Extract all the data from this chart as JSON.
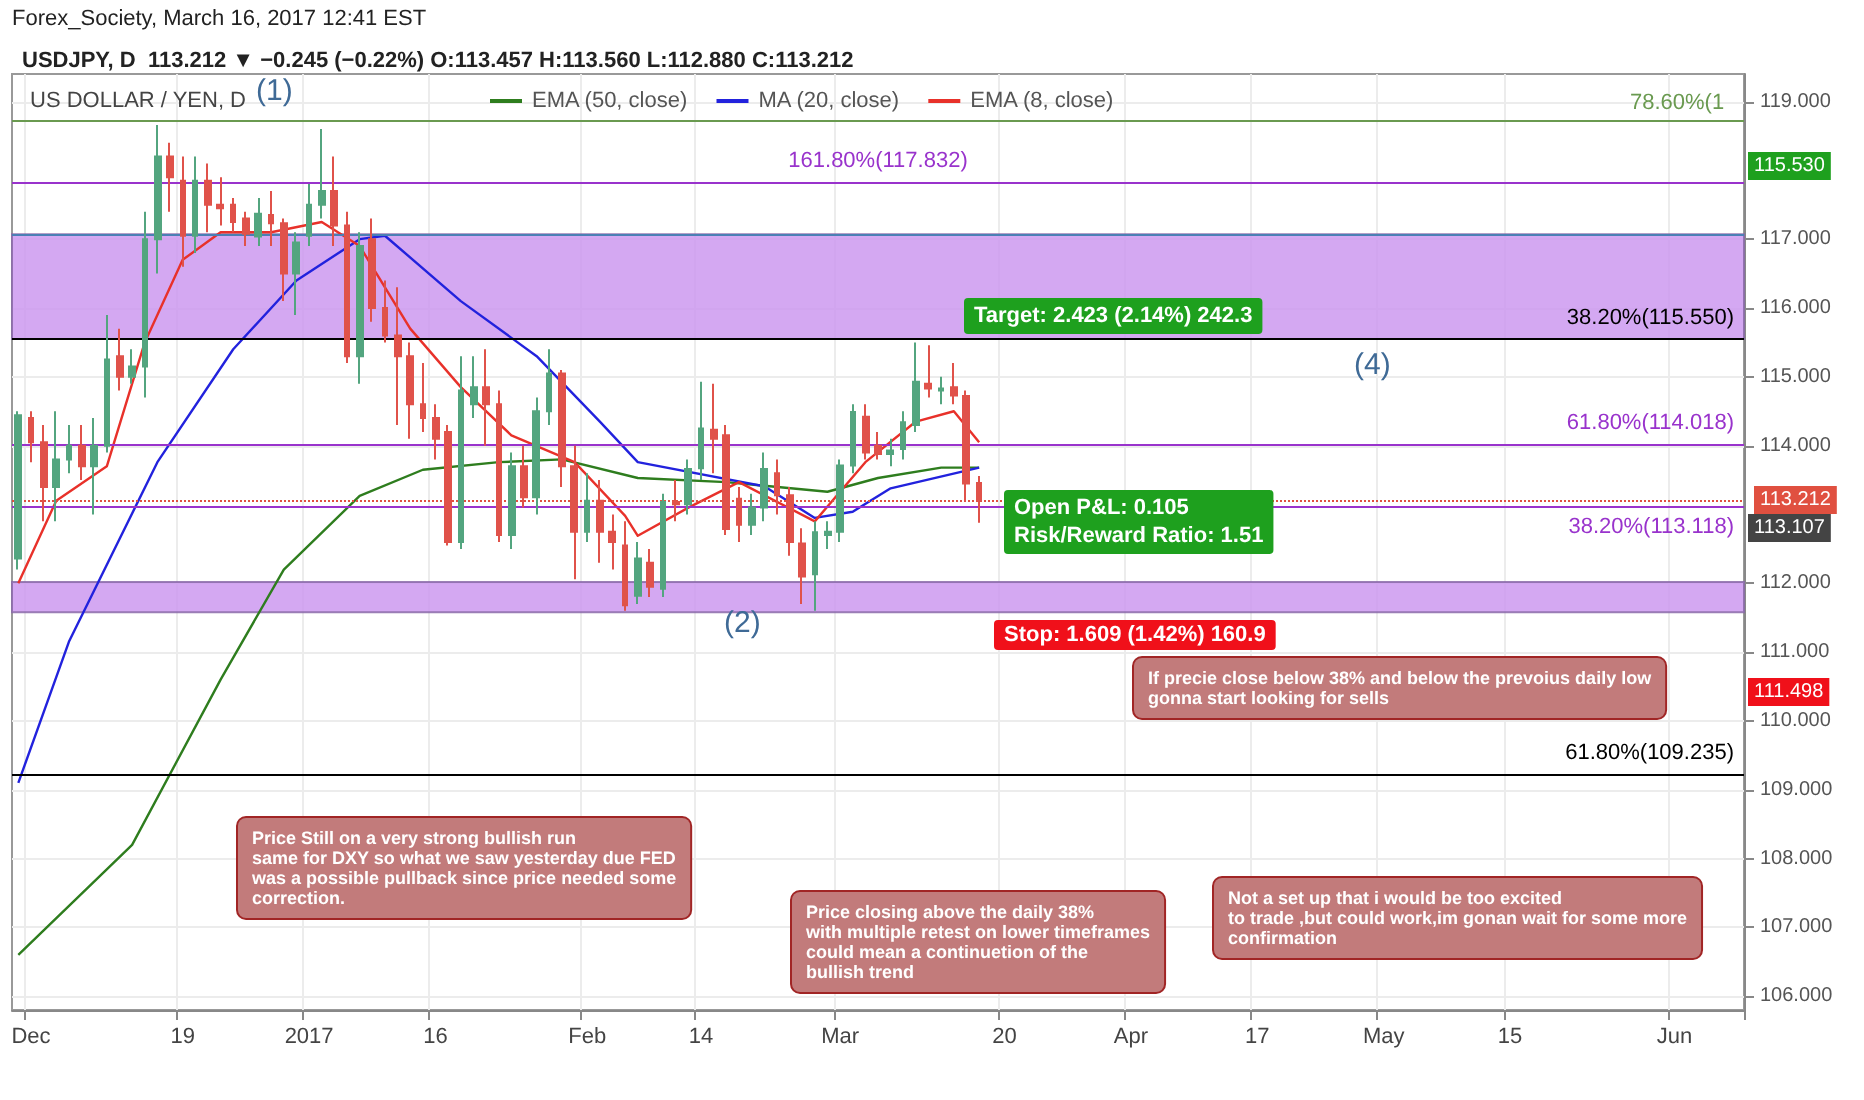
{
  "chart_data": {
    "type": "candlestick",
    "title": "US DOLLAR / YEN, D",
    "subtitle": "USDJPY, D  113.212 ▼ −0.245 (−0.22%) O:113.457 H:113.560 L:112.880 C:113.212",
    "categories": [
      null,
      "Dec",
      null,
      null,
      null,
      null,
      null,
      null,
      null,
      null,
      null,
      null,
      null,
      "19",
      null,
      null,
      null,
      null,
      null,
      null,
      null,
      null,
      null,
      "2017",
      null,
      null,
      null,
      null,
      null,
      null,
      null,
      null,
      null,
      "16",
      null,
      null,
      null,
      null,
      null,
      null,
      null,
      null,
      null,
      null,
      null,
      "Feb",
      null,
      null,
      null,
      null,
      null,
      null,
      null,
      null,
      "14",
      null,
      null,
      null,
      null,
      null,
      null,
      null,
      null,
      null,
      null,
      "Mar",
      null,
      null,
      null,
      null,
      null,
      null,
      null,
      null,
      null,
      null,
      null,
      null,
      "20",
      null,
      null,
      null,
      null,
      null,
      null,
      null,
      null,
      null,
      "Apr",
      null,
      null,
      null,
      null,
      null,
      null,
      null,
      null,
      null,
      "17",
      null,
      null,
      null,
      null,
      null,
      null,
      null,
      null,
      null,
      "May",
      null,
      null,
      null,
      null,
      null,
      null,
      null,
      null,
      null,
      "15",
      null,
      null,
      null,
      null,
      null,
      null,
      null,
      null,
      null,
      null,
      null,
      null,
      "Jun",
      null,
      null,
      null,
      null,
      null
    ],
    "ohlc": [
      [
        112.36,
        114.5,
        112.2,
        114.44
      ],
      [
        114.4,
        114.5,
        113.76,
        114.05
      ],
      [
        114.05,
        114.3,
        112.9,
        113.4
      ],
      [
        113.4,
        114.5,
        112.9,
        113.8
      ],
      [
        113.8,
        114.3,
        113.6,
        114.0
      ],
      [
        114.0,
        114.3,
        113.5,
        113.7
      ],
      [
        113.7,
        114.4,
        113.0,
        114.0
      ],
      [
        114.0,
        115.9,
        113.9,
        115.25
      ],
      [
        115.3,
        115.7,
        114.8,
        115.0
      ],
      [
        115.0,
        115.4,
        114.9,
        115.15
      ],
      [
        115.15,
        117.4,
        114.7,
        117.0
      ],
      [
        117.0,
        118.66,
        116.5,
        118.2
      ],
      [
        118.2,
        118.4,
        117.4,
        117.9
      ],
      [
        117.85,
        118.2,
        116.6,
        117.05
      ],
      [
        117.05,
        118.2,
        116.8,
        117.85
      ],
      [
        117.85,
        118.1,
        117.1,
        117.5
      ],
      [
        117.5,
        117.9,
        117.2,
        117.45
      ],
      [
        117.5,
        117.6,
        117.1,
        117.25
      ],
      [
        117.3,
        117.4,
        116.9,
        117.08
      ],
      [
        117.04,
        117.6,
        116.9,
        117.37
      ],
      [
        117.35,
        117.7,
        116.9,
        117.23
      ],
      [
        117.23,
        117.3,
        116.1,
        116.5
      ],
      [
        116.5,
        117.1,
        115.9,
        116.95
      ],
      [
        117.05,
        117.8,
        116.9,
        117.5
      ],
      [
        117.5,
        118.6,
        117.3,
        117.7
      ],
      [
        117.7,
        118.2,
        116.9,
        117.2
      ],
      [
        117.2,
        117.4,
        115.2,
        115.3
      ],
      [
        115.3,
        117.1,
        114.9,
        116.9
      ],
      [
        117.0,
        117.3,
        115.8,
        116.0
      ],
      [
        116.0,
        116.4,
        115.5,
        115.6
      ],
      [
        115.6,
        116.3,
        114.3,
        115.3
      ],
      [
        115.3,
        115.5,
        114.1,
        114.6
      ],
      [
        114.6,
        115.2,
        114.2,
        114.4
      ],
      [
        114.4,
        114.6,
        113.8,
        114.1
      ],
      [
        114.2,
        114.3,
        112.55,
        112.6
      ],
      [
        112.6,
        115.3,
        112.5,
        114.8
      ],
      [
        114.6,
        115.3,
        114.4,
        114.85
      ],
      [
        114.85,
        115.4,
        114.0,
        114.6
      ],
      [
        114.6,
        114.8,
        112.6,
        112.7
      ],
      [
        112.7,
        113.9,
        112.5,
        113.7
      ],
      [
        113.7,
        114.0,
        113.1,
        113.25
      ],
      [
        113.25,
        114.7,
        113.0,
        114.5
      ],
      [
        114.5,
        115.4,
        114.3,
        115.05
      ],
      [
        115.05,
        115.1,
        113.4,
        113.7
      ],
      [
        113.7,
        114.0,
        112.06,
        112.75
      ],
      [
        112.75,
        113.6,
        112.6,
        113.2
      ],
      [
        113.2,
        113.5,
        112.3,
        112.75
      ],
      [
        112.75,
        113.0,
        112.2,
        112.6
      ],
      [
        112.55,
        112.9,
        111.6,
        111.68
      ],
      [
        111.82,
        112.6,
        111.7,
        112.36
      ],
      [
        112.3,
        112.5,
        111.8,
        111.95
      ],
      [
        111.92,
        113.3,
        111.8,
        113.18
      ],
      [
        113.18,
        113.5,
        112.9,
        113.15
      ],
      [
        113.15,
        113.8,
        113.0,
        113.66
      ],
      [
        113.67,
        114.93,
        113.5,
        114.25
      ],
      [
        114.23,
        114.9,
        113.6,
        114.1
      ],
      [
        114.15,
        114.3,
        112.7,
        112.79
      ],
      [
        113.23,
        113.4,
        112.6,
        112.85
      ],
      [
        112.85,
        113.3,
        112.7,
        113.1
      ],
      [
        113.1,
        113.9,
        112.9,
        113.66
      ],
      [
        113.6,
        113.8,
        113.0,
        113.28
      ],
      [
        113.28,
        113.4,
        112.4,
        112.6
      ],
      [
        112.58,
        112.8,
        111.7,
        112.1
      ],
      [
        112.13,
        112.9,
        111.6,
        112.74
      ],
      [
        112.7,
        112.9,
        112.5,
        112.75
      ],
      [
        112.75,
        113.8,
        112.6,
        113.71
      ],
      [
        113.71,
        114.6,
        113.6,
        114.49
      ],
      [
        114.42,
        114.6,
        113.8,
        113.9
      ],
      [
        114.0,
        114.2,
        113.8,
        113.88
      ],
      [
        113.88,
        114.1,
        113.7,
        113.93
      ],
      [
        113.95,
        114.5,
        113.8,
        114.34
      ],
      [
        114.3,
        115.5,
        114.2,
        114.93
      ],
      [
        114.9,
        115.46,
        114.7,
        114.83
      ],
      [
        114.8,
        115.0,
        114.6,
        114.83
      ],
      [
        114.85,
        115.2,
        114.6,
        114.73
      ],
      [
        114.72,
        114.8,
        113.2,
        113.45
      ],
      [
        113.457,
        113.56,
        112.88,
        113.212
      ],
      null,
      null,
      null,
      null,
      null,
      null,
      null,
      null,
      null,
      null,
      null,
      null,
      null,
      null,
      null,
      null,
      null,
      null,
      null,
      null,
      null,
      null,
      null,
      null,
      null,
      null,
      null,
      null,
      null,
      null,
      null,
      null,
      null,
      null,
      null,
      null,
      null,
      null,
      null,
      null,
      null,
      null,
      null,
      null,
      null,
      null,
      null,
      null,
      null,
      null,
      null,
      null,
      null,
      null,
      null,
      null,
      null,
      null,
      null,
      null
    ],
    "colors": [
      "#53a57f",
      "#e0524a",
      "#e0524a",
      "#53a57f",
      "#53a57f",
      "#e0524a",
      "#53a57f",
      "#53a57f",
      "#e0524a",
      "#53a57f",
      "#53a57f",
      "#53a57f",
      "#e0524a",
      "#e0524a",
      "#53a57f",
      "#e0524a",
      "#e0524a",
      "#e0524a",
      "#e0524a",
      "#53a57f",
      "#e0524a",
      "#e0524a",
      "#53a57f",
      "#53a57f",
      "#53a57f",
      "#e0524a",
      "#e0524a",
      "#53a57f",
      "#e0524a",
      "#e0524a",
      "#e0524a",
      "#e0524a",
      "#e0524a",
      "#e0524a",
      "#e0524a",
      "#53a57f",
      "#53a57f",
      "#e0524a",
      "#e0524a",
      "#53a57f",
      "#e0524a",
      "#53a57f",
      "#53a57f",
      "#e0524a",
      "#e0524a",
      "#53a57f",
      "#e0524a",
      "#e0524a",
      "#e0524a",
      "#53a57f",
      "#e0524a",
      "#53a57f",
      "#e0524a",
      "#53a57f",
      "#53a57f",
      "#e0524a",
      "#e0524a",
      "#e0524a",
      "#53a57f",
      "#53a57f",
      "#e0524a",
      "#e0524a",
      "#e0524a",
      "#53a57f",
      "#53a57f",
      "#53a57f",
      "#53a57f",
      "#e0524a",
      "#e0524a",
      "#53a57f",
      "#53a57f",
      "#53a57f",
      "#e0524a",
      "#53a57f",
      "#e0524a",
      "#e0524a",
      "#e0524a",
      null,
      null,
      null,
      null,
      null,
      null,
      null,
      null,
      null,
      null,
      null,
      null,
      null,
      null,
      null,
      null,
      null,
      null,
      null,
      null,
      null,
      null,
      null,
      null,
      null,
      null,
      null,
      null,
      null,
      null,
      null,
      null,
      null,
      null,
      null,
      null,
      null,
      null,
      null,
      null,
      null,
      null,
      null,
      null,
      null,
      null,
      null,
      null,
      null,
      null,
      null,
      null,
      null,
      null,
      null,
      null,
      null,
      null,
      null,
      null
    ],
    "series": [
      {
        "name": "EMA (50, close)",
        "type": "line",
        "color": "#2e7d1e",
        "values": [
          106.6,
          null,
          null,
          null,
          null,
          null,
          null,
          null,
          null,
          108.2,
          null,
          null,
          null,
          null,
          null,
          null,
          110.6,
          null,
          null,
          null,
          null,
          112.2,
          null,
          null,
          null,
          null,
          null,
          113.27,
          null,
          null,
          null,
          null,
          113.65,
          null,
          null,
          null,
          null,
          null,
          113.76,
          null,
          null,
          null,
          null,
          113.8,
          null,
          null,
          null,
          null,
          null,
          113.53,
          null,
          null,
          null,
          null,
          null,
          null,
          113.47,
          null,
          null,
          null,
          null,
          null,
          null,
          null,
          113.33,
          null,
          null,
          null,
          113.53,
          null,
          null,
          null,
          null,
          113.68,
          null,
          null,
          113.68,
          null,
          null,
          null,
          null,
          null,
          null,
          null,
          null,
          null,
          null,
          null,
          null,
          null,
          null,
          null,
          null,
          null,
          null,
          null,
          null,
          null,
          null,
          null,
          null,
          null,
          null,
          null,
          null,
          null,
          null,
          null,
          null,
          null,
          null,
          null,
          null,
          null,
          null,
          null,
          null,
          null,
          null,
          null,
          null,
          null,
          null,
          null,
          null,
          null,
          null,
          null,
          null,
          null,
          null,
          null,
          null,
          null,
          null,
          null,
          null
        ]
      },
      {
        "name": "MA (20, close)",
        "type": "line",
        "color": "#2222dd",
        "values": [
          109.1,
          null,
          null,
          null,
          111.15,
          null,
          null,
          null,
          null,
          null,
          null,
          113.76,
          null,
          null,
          null,
          null,
          null,
          115.4,
          null,
          null,
          null,
          null,
          116.4,
          null,
          null,
          null,
          null,
          117.0,
          null,
          117.05,
          null,
          null,
          null,
          null,
          null,
          116.1,
          null,
          null,
          null,
          null,
          null,
          115.3,
          null,
          null,
          null,
          null,
          114.35,
          null,
          null,
          113.76,
          null,
          null,
          null,
          null,
          null,
          null,
          null,
          null,
          null,
          113.41,
          null,
          null,
          null,
          112.95,
          null,
          null,
          113.04,
          null,
          null,
          113.38,
          null,
          null,
          null,
          null,
          null,
          null,
          113.68,
          null,
          null,
          null,
          null,
          null,
          null,
          null,
          null,
          null,
          null,
          null,
          null,
          null,
          null,
          null,
          null,
          null,
          null,
          null,
          null,
          null,
          null,
          null,
          null,
          null,
          null,
          null,
          null,
          null,
          null,
          null,
          null,
          null,
          null,
          null,
          null,
          null,
          null,
          null,
          null,
          null,
          null,
          null,
          null,
          null,
          null,
          null,
          null,
          null,
          null,
          null,
          null,
          null,
          null,
          null,
          null,
          null,
          null,
          null,
          null
        ]
      },
      {
        "name": "EMA (8, close)",
        "type": "line",
        "color": "#e8312a",
        "values": [
          112.0,
          null,
          null,
          113.2,
          null,
          null,
          null,
          113.7,
          null,
          null,
          115.5,
          null,
          null,
          116.7,
          null,
          null,
          117.1,
          null,
          null,
          null,
          117.1,
          null,
          null,
          null,
          117.25,
          null,
          null,
          116.9,
          null,
          null,
          null,
          115.7,
          null,
          null,
          null,
          114.85,
          null,
          null,
          null,
          114.15,
          null,
          null,
          null,
          null,
          113.76,
          null,
          null,
          null,
          112.98,
          112.69,
          null,
          null,
          null,
          113.1,
          null,
          null,
          null,
          113.47,
          null,
          null,
          null,
          null,
          null,
          112.9,
          null,
          null,
          null,
          113.76,
          null,
          null,
          null,
          114.35,
          null,
          null,
          114.5,
          null,
          114.05,
          null,
          null,
          null,
          null,
          null,
          null,
          null,
          null,
          null,
          null,
          null,
          null,
          null,
          null,
          null,
          null,
          null,
          null,
          null,
          null,
          null,
          null,
          null,
          null,
          null,
          null,
          null,
          null,
          null,
          null,
          null,
          null,
          null,
          null,
          null,
          null,
          null,
          null,
          null,
          null,
          null,
          null,
          null,
          null,
          null,
          null,
          null,
          null,
          null,
          null,
          null,
          null,
          null,
          null,
          null,
          null,
          null,
          null,
          null,
          null
        ]
      }
    ],
    "ylim": [
      105.8,
      119.4
    ],
    "yticks": [
      {
        "value": 106,
        "label": "106.000"
      },
      {
        "value": 107,
        "label": "107.000"
      },
      {
        "value": 108,
        "label": "108.000"
      },
      {
        "value": 109,
        "label": "109.000"
      },
      {
        "value": 110,
        "label": "110.000"
      },
      {
        "value": 111,
        "label": "111.000"
      },
      {
        "value": 112,
        "label": "112.000"
      },
      {
        "value": 114,
        "label": "114.000"
      },
      {
        "value": 115,
        "label": "115.000"
      },
      {
        "value": 116,
        "label": "116.000"
      },
      {
        "value": 117,
        "label": "117.000"
      },
      {
        "value": 119,
        "label": "119.000"
      }
    ],
    "ref_lines": [
      {
        "axis": "y",
        "value": 118.71,
        "color": "#6a9a50"
      },
      {
        "axis": "y",
        "value": 117.832,
        "label": "161.80%(117.832)",
        "color": "#9933cc"
      },
      {
        "axis": "y",
        "value": 117.07,
        "color": "#4a7fb5"
      },
      {
        "axis": "y",
        "value": 115.55,
        "label": "38.20%(115.550)",
        "color": "#000000"
      },
      {
        "axis": "y",
        "value": 114.018,
        "label": "61.80%(114.018)",
        "color": "#9933cc"
      },
      {
        "axis": "y",
        "value": 113.212,
        "label": "113.212",
        "color": "#e05040",
        "line_style": "dotted"
      },
      {
        "axis": "y",
        "value": 113.118,
        "label": "38.20%(113.118)",
        "color": "#9933cc"
      },
      {
        "axis": "y",
        "value": 109.235,
        "label": "61.80%(109.235)",
        "color": "#000000"
      }
    ],
    "bands": [
      {
        "axis": "y",
        "from": 115.55,
        "to": 117.07,
        "color": "#cc99f0"
      },
      {
        "axis": "y",
        "from": 111.58,
        "to": 112.02,
        "color": "#cc99f0"
      }
    ],
    "annotations": [
      "Forex_Society, March 16, 2017 12:41 EST",
      "(1)",
      "(2)",
      "(4)",
      "Target: 2.423 (2.14%) 242.3",
      "Open P&L: 0.105\nRisk/Reward Ratio: 1.51",
      "Stop: 1.609 (1.42%) 160.9",
      "Price Still on a very strong bullish run\nsame for DXY so what we saw yesterday due FED\nwas a possible pullback since price needed some\ncorrection.",
      "Price closing above the daily 38%\nwith multiple retest on lower timeframes\ncould mean a continuetion of the\nbullish trend",
      "Not a set up that i would be too excited\nto trade ,but could work,im gonan wait for some more\nconfirmation",
      "If precie close below 38% and below the prevoius daily low\ngonna start looking for sells",
      "115.530",
      "113.107",
      "111.498",
      "78.60%(1"
    ],
    "grid": true,
    "legend": "top"
  }
}
